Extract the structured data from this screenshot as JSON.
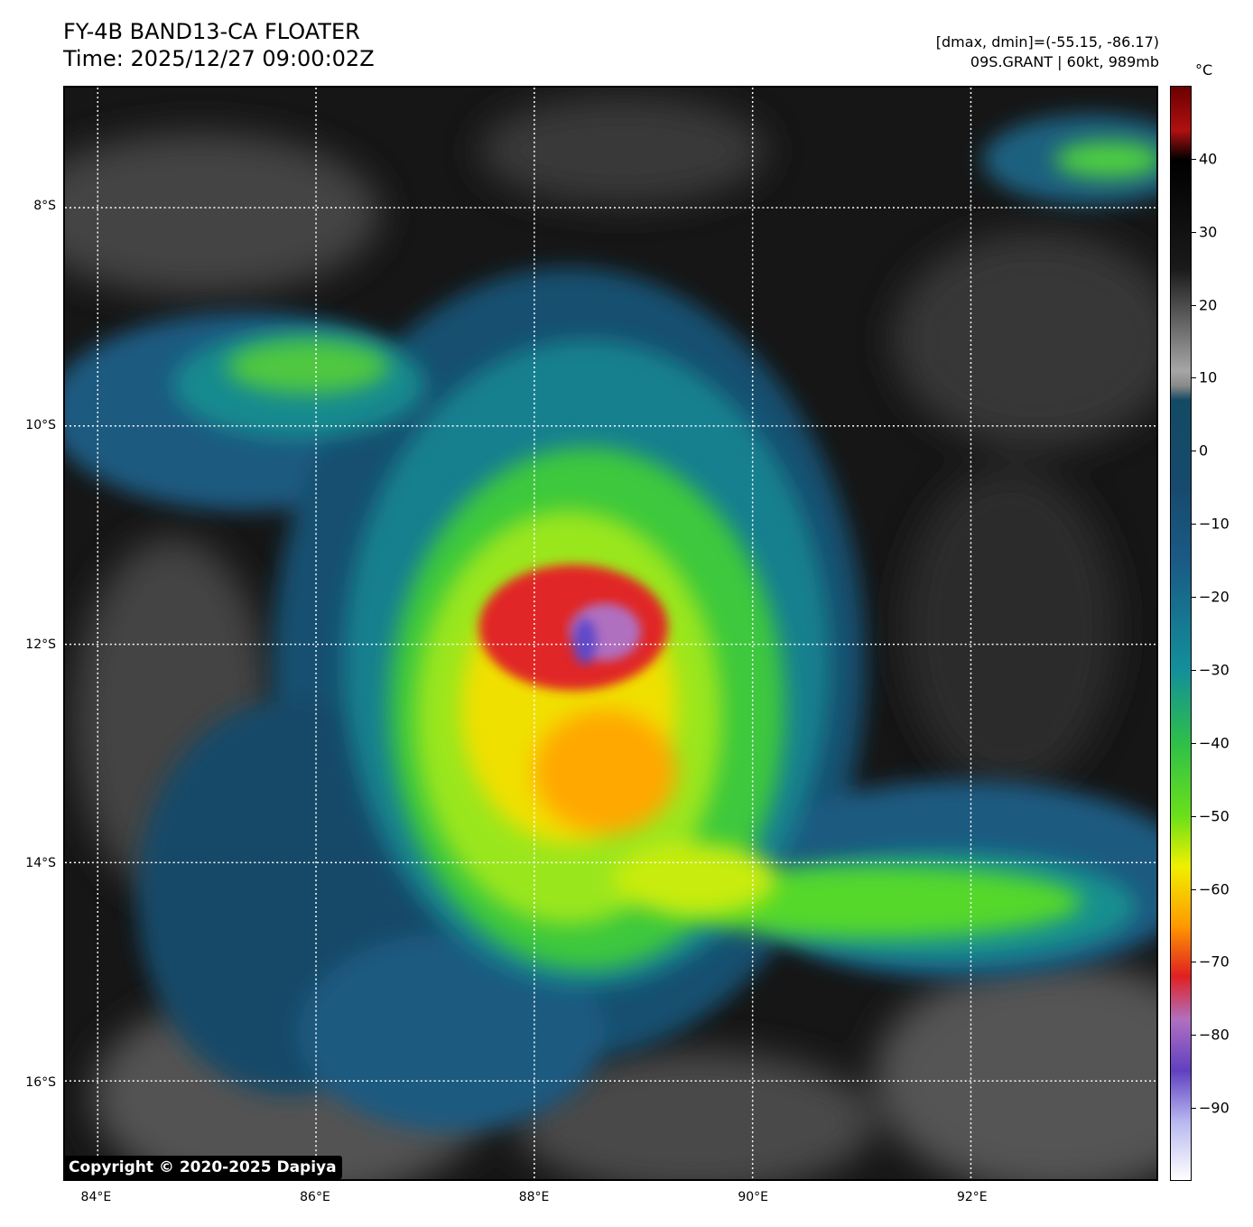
{
  "title": {
    "line1": "FY-4B BAND13-CA FLOATER",
    "line2": "Time: 2025/12/27 09:00:02Z"
  },
  "info": {
    "line1": "[dmax, dmin]=(-55.15, -86.17)",
    "line2": "09S.GRANT | 60kt, 989mb"
  },
  "map": {
    "lon_range": [
      83.7,
      93.7
    ],
    "lat_range": [
      -16.9,
      -6.9
    ],
    "lat_ticks": [
      "8°S",
      "10°S",
      "12°S",
      "14°S",
      "16°S"
    ],
    "lat_values": [
      -8,
      -10,
      -12,
      -14,
      -16
    ],
    "lon_ticks": [
      "84°E",
      "86°E",
      "88°E",
      "90°E",
      "92°E"
    ],
    "lon_values": [
      84,
      86,
      88,
      90,
      92
    ],
    "storm_center_lon": 88.5,
    "storm_center_lat": -12.0,
    "gridlines": "dotted white"
  },
  "colorbar": {
    "unit": "°C",
    "range": [
      -100,
      50
    ],
    "ticks": [
      "40",
      "30",
      "20",
      "10",
      "0",
      "−10",
      "−20",
      "−30",
      "−40",
      "−50",
      "−60",
      "−70",
      "−80",
      "−90"
    ],
    "tick_values": [
      40,
      30,
      20,
      10,
      0,
      -10,
      -20,
      -30,
      -40,
      -50,
      -60,
      -70,
      -80,
      -90
    ],
    "stops": [
      {
        "v": 50,
        "c": "#6b0000"
      },
      {
        "v": 44,
        "c": "#b01010"
      },
      {
        "v": 40,
        "c": "#000000"
      },
      {
        "v": 25,
        "c": "#1a1a1a"
      },
      {
        "v": 11,
        "c": "#a6a6a6"
      },
      {
        "v": 9,
        "c": "#8a8a8a"
      },
      {
        "v": 7,
        "c": "#134a63"
      },
      {
        "v": -5,
        "c": "#174a6d"
      },
      {
        "v": -15,
        "c": "#1a5a85"
      },
      {
        "v": -30,
        "c": "#138f9a"
      },
      {
        "v": -40,
        "c": "#2ebf4a"
      },
      {
        "v": -50,
        "c": "#6ae01a"
      },
      {
        "v": -57,
        "c": "#f0f000"
      },
      {
        "v": -65,
        "c": "#ff9a00"
      },
      {
        "v": -72,
        "c": "#e02020"
      },
      {
        "v": -78,
        "c": "#b070c0"
      },
      {
        "v": -85,
        "c": "#6040c0"
      },
      {
        "v": -92,
        "c": "#b8b8f0"
      },
      {
        "v": -100,
        "c": "#ffffff"
      }
    ]
  },
  "copyright": "Copyright © 2020-2025 Dapiya"
}
